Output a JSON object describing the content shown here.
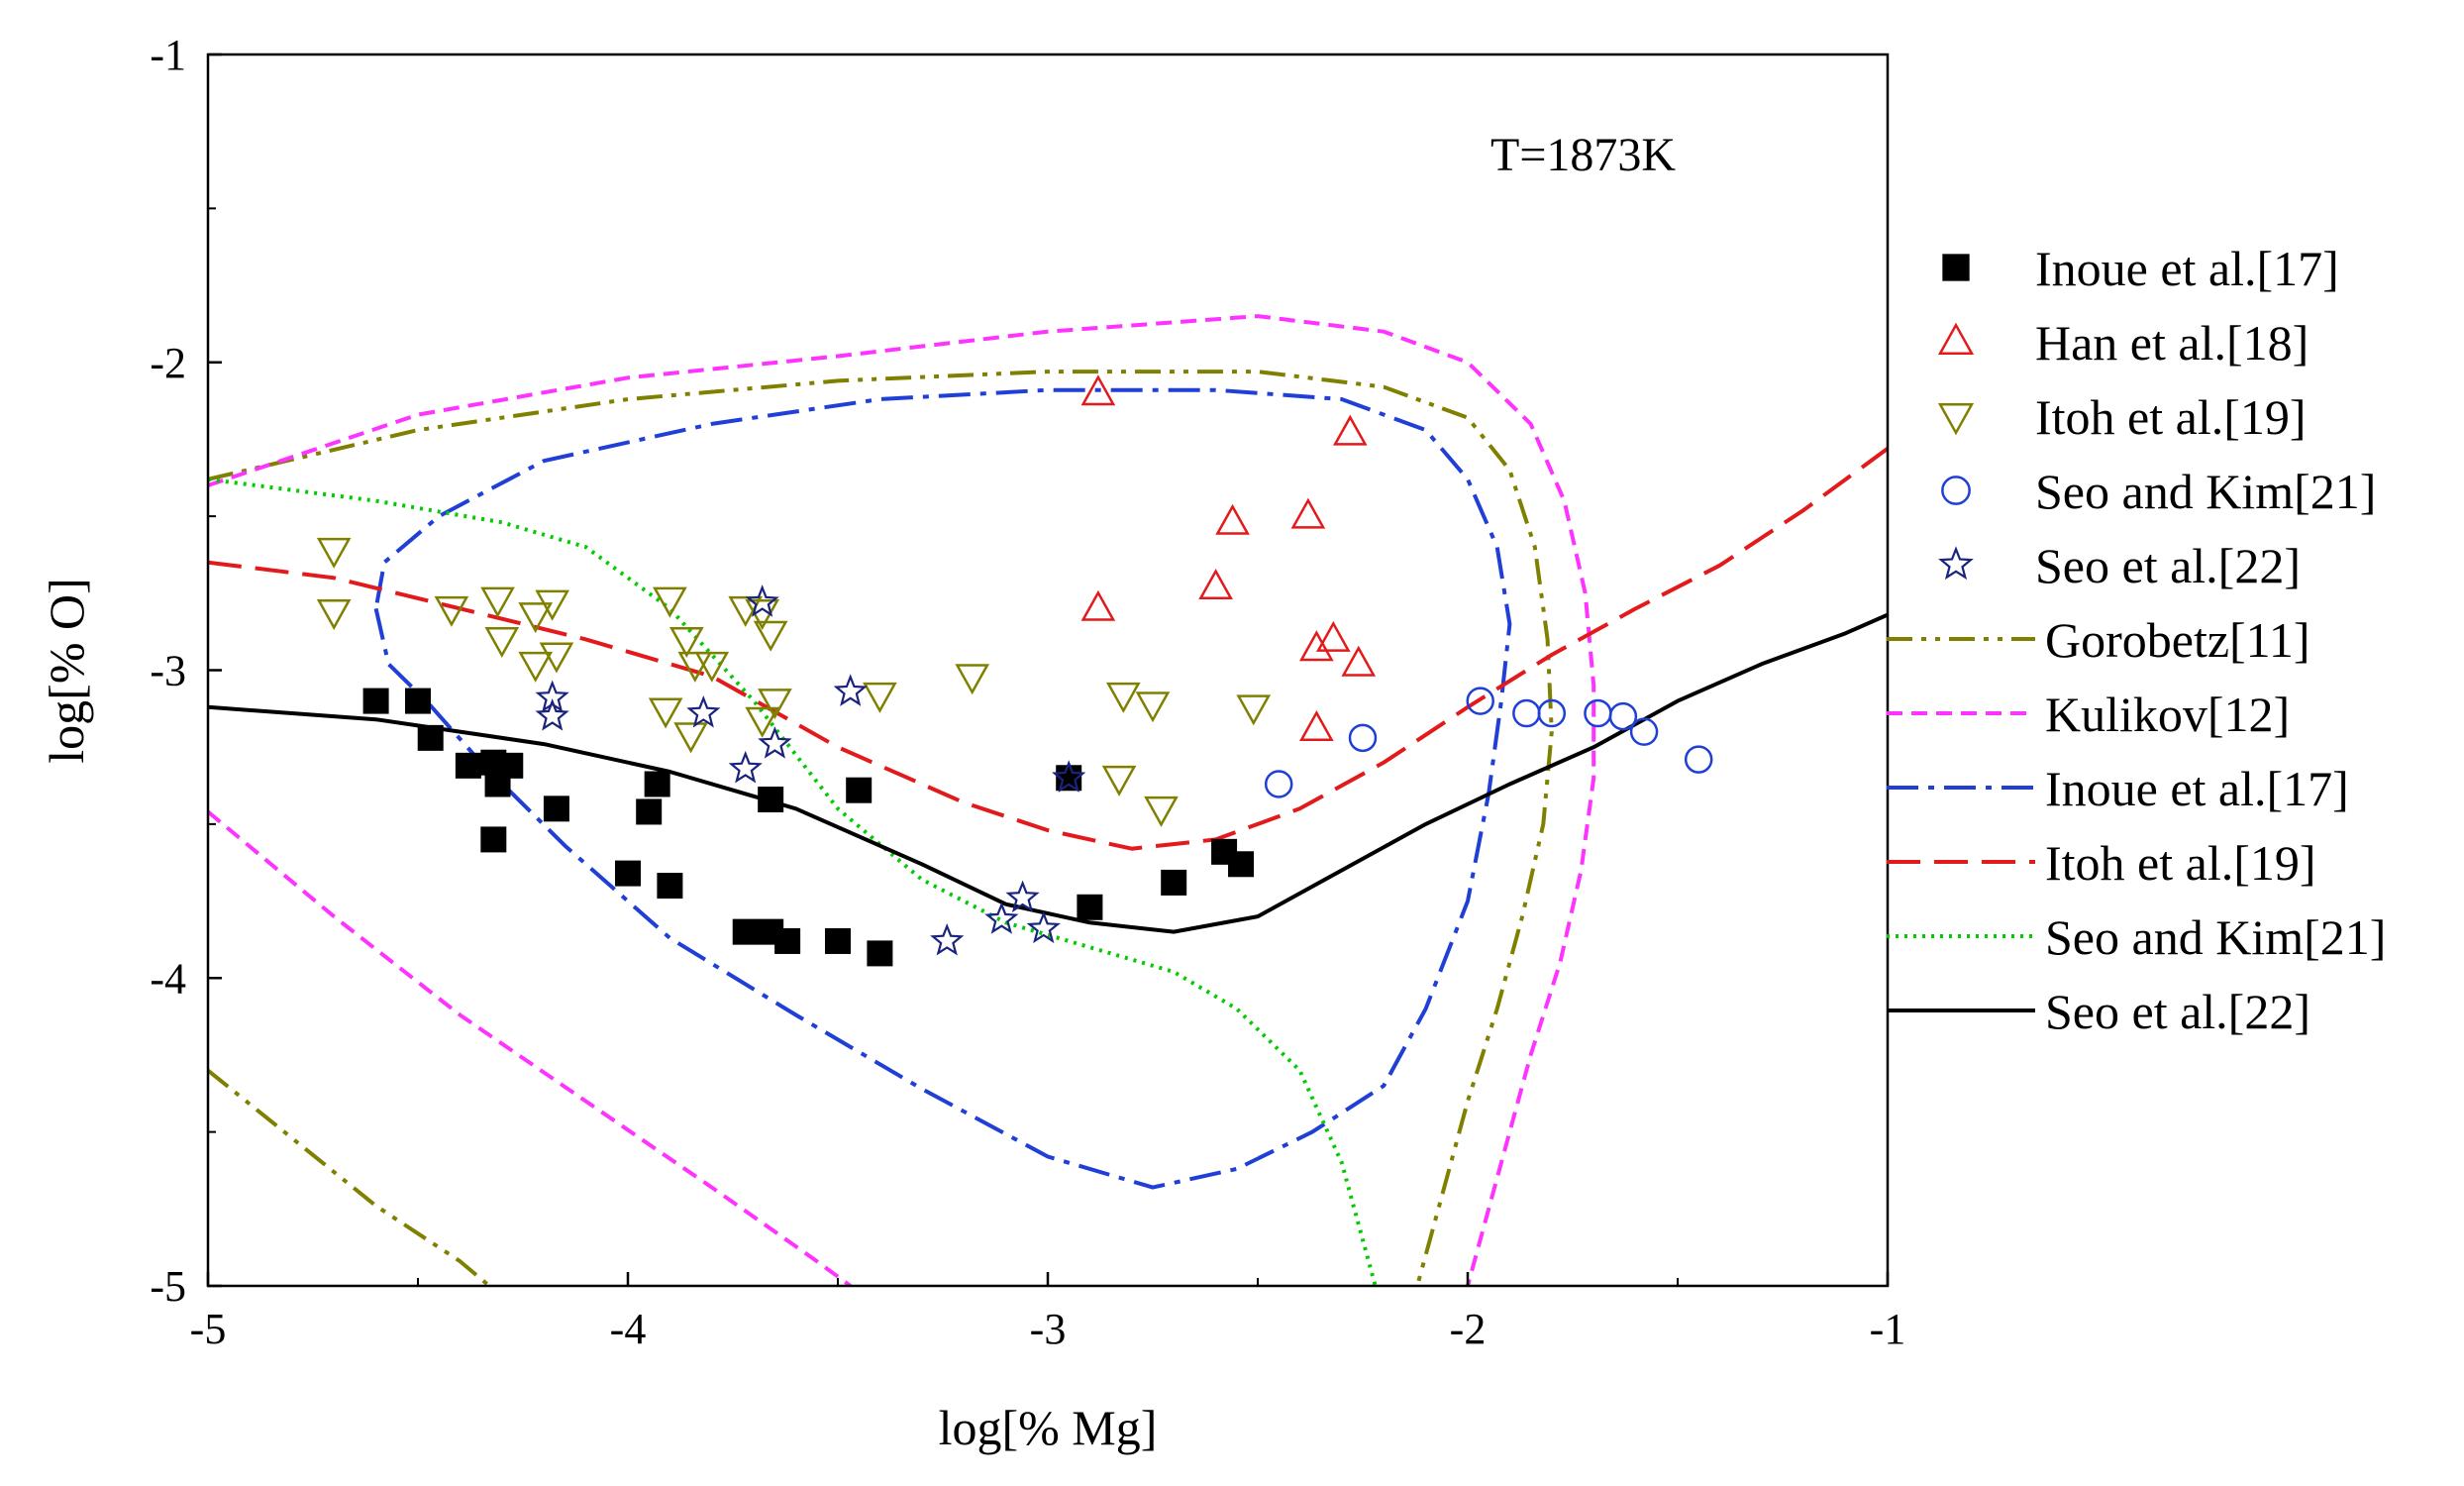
{
  "chart_data": {
    "type": "scatter",
    "title": "",
    "annotation": "T=1873K",
    "xlabel": "log[% Mg]",
    "ylabel": "log[% O]",
    "xlim": [
      -5,
      -1
    ],
    "ylim": [
      -5,
      -1
    ],
    "xticks": [
      "-5",
      "-4",
      "-3",
      "-2",
      "-1"
    ],
    "yticks": [
      "-5",
      "-4",
      "-3",
      "-2",
      "-1"
    ],
    "grid": false,
    "legend_position": "right",
    "scatter_series": [
      {
        "name": "Inoue et al.[17]",
        "marker": "filled-square",
        "color": "#000000",
        "points": [
          [
            -4.6,
            -3.1
          ],
          [
            -4.5,
            -3.1
          ],
          [
            -4.47,
            -3.22
          ],
          [
            -4.38,
            -3.31
          ],
          [
            -4.32,
            -3.3
          ],
          [
            -4.31,
            -3.37
          ],
          [
            -4.28,
            -3.31
          ],
          [
            -4.32,
            -3.55
          ],
          [
            -4.17,
            -3.45
          ],
          [
            -3.93,
            -3.37
          ],
          [
            -3.95,
            -3.46
          ],
          [
            -4.0,
            -3.66
          ],
          [
            -3.9,
            -3.7
          ],
          [
            -3.66,
            -3.42
          ],
          [
            -3.72,
            -3.85
          ],
          [
            -3.66,
            -3.85
          ],
          [
            -3.62,
            -3.88
          ],
          [
            -3.5,
            -3.88
          ],
          [
            -3.4,
            -3.92
          ],
          [
            -3.45,
            -3.39
          ],
          [
            -2.95,
            -3.35
          ],
          [
            -2.9,
            -3.77
          ],
          [
            -2.7,
            -3.69
          ],
          [
            -2.58,
            -3.59
          ],
          [
            -2.54,
            -3.63
          ]
        ]
      },
      {
        "name": "Han et al.[18]",
        "marker": "open-triangle-up",
        "color": "#e31a1c",
        "points": [
          [
            -2.88,
            -2.1
          ],
          [
            -2.28,
            -2.23
          ],
          [
            -2.56,
            -2.52
          ],
          [
            -2.38,
            -2.5
          ],
          [
            -2.88,
            -2.8
          ],
          [
            -2.6,
            -2.73
          ],
          [
            -2.36,
            -2.93
          ],
          [
            -2.32,
            -2.9
          ],
          [
            -2.26,
            -2.98
          ],
          [
            -2.36,
            -3.19
          ]
        ]
      },
      {
        "name": "Itoh et al.[19]",
        "marker": "open-triangle-down",
        "color": "#808000",
        "points": [
          [
            -4.7,
            -2.61
          ],
          [
            -4.7,
            -2.81
          ],
          [
            -4.42,
            -2.8
          ],
          [
            -4.31,
            -2.77
          ],
          [
            -4.3,
            -2.9
          ],
          [
            -4.22,
            -2.82
          ],
          [
            -4.18,
            -2.78
          ],
          [
            -4.17,
            -2.95
          ],
          [
            -4.22,
            -2.98
          ],
          [
            -3.9,
            -2.77
          ],
          [
            -3.86,
            -2.9
          ],
          [
            -3.84,
            -2.98
          ],
          [
            -3.8,
            -2.98
          ],
          [
            -3.72,
            -2.8
          ],
          [
            -3.68,
            -2.81
          ],
          [
            -3.66,
            -2.88
          ],
          [
            -3.68,
            -3.16
          ],
          [
            -3.65,
            -3.1
          ],
          [
            -3.91,
            -3.13
          ],
          [
            -3.85,
            -3.21
          ],
          [
            -3.4,
            -3.08
          ],
          [
            -3.18,
            -3.02
          ],
          [
            -2.82,
            -3.08
          ],
          [
            -2.75,
            -3.11
          ],
          [
            -2.51,
            -3.12
          ],
          [
            -2.83,
            -3.35
          ],
          [
            -2.73,
            -3.45
          ]
        ]
      },
      {
        "name": "Seo and Kim[21]",
        "marker": "open-circle",
        "color": "#1f3fd6",
        "points": [
          [
            -2.45,
            -3.37
          ],
          [
            -2.25,
            -3.22
          ],
          [
            -1.97,
            -3.1
          ],
          [
            -1.86,
            -3.14
          ],
          [
            -1.8,
            -3.14
          ],
          [
            -1.69,
            -3.14
          ],
          [
            -1.63,
            -3.15
          ],
          [
            -1.58,
            -3.2
          ],
          [
            -1.45,
            -3.29
          ]
        ]
      },
      {
        "name": "Seo et al.[22]",
        "marker": "open-star",
        "color": "#1a237e",
        "points": [
          [
            -3.68,
            -2.78
          ],
          [
            -4.18,
            -3.09
          ],
          [
            -4.18,
            -3.15
          ],
          [
            -3.82,
            -3.14
          ],
          [
            -3.47,
            -3.07
          ],
          [
            -3.65,
            -3.24
          ],
          [
            -3.72,
            -3.32
          ],
          [
            -2.95,
            -3.35
          ],
          [
            -3.06,
            -3.74
          ],
          [
            -3.11,
            -3.81
          ],
          [
            -3.01,
            -3.84
          ],
          [
            -3.24,
            -3.88
          ]
        ]
      }
    ],
    "line_series": [
      {
        "name": "Gorobetz[11]",
        "style": "dash-dot-dot",
        "color": "#808000",
        "segments": [
          [
            [
              -5.0,
              -2.38
            ],
            [
              -4.5,
              -2.22
            ],
            [
              -4.0,
              -2.12
            ],
            [
              -3.5,
              -2.06
            ],
            [
              -3.0,
              -2.03
            ],
            [
              -2.5,
              -2.03
            ],
            [
              -2.2,
              -2.08
            ],
            [
              -2.0,
              -2.18
            ],
            [
              -1.9,
              -2.35
            ],
            [
              -1.84,
              -2.6
            ],
            [
              -1.81,
              -2.9
            ],
            [
              -1.8,
              -3.2
            ],
            [
              -1.82,
              -3.5
            ],
            [
              -1.87,
              -3.8
            ],
            [
              -1.93,
              -4.1
            ],
            [
              -2.0,
              -4.4
            ],
            [
              -2.06,
              -4.7
            ],
            [
              -2.12,
              -5.0
            ]
          ],
          [
            [
              -5.0,
              -4.3
            ],
            [
              -4.8,
              -4.52
            ],
            [
              -4.6,
              -4.74
            ],
            [
              -4.4,
              -4.92
            ],
            [
              -4.33,
              -5.0
            ]
          ]
        ]
      },
      {
        "name": "Kulikov[12]",
        "style": "dashed",
        "color": "#ff33ff",
        "segments": [
          [
            [
              -5.0,
              -2.4
            ],
            [
              -4.5,
              -2.17
            ],
            [
              -4.0,
              -2.05
            ],
            [
              -3.5,
              -1.98
            ],
            [
              -3.0,
              -1.9
            ],
            [
              -2.5,
              -1.85
            ],
            [
              -2.2,
              -1.9
            ],
            [
              -2.0,
              -2.0
            ],
            [
              -1.85,
              -2.2
            ],
            [
              -1.77,
              -2.45
            ],
            [
              -1.72,
              -2.75
            ],
            [
              -1.7,
              -3.05
            ],
            [
              -1.7,
              -3.35
            ],
            [
              -1.73,
              -3.65
            ],
            [
              -1.78,
              -3.95
            ],
            [
              -1.85,
              -4.25
            ],
            [
              -1.92,
              -4.6
            ],
            [
              -2.0,
              -5.0
            ]
          ],
          [
            [
              -5.0,
              -3.46
            ],
            [
              -4.7,
              -3.8
            ],
            [
              -4.4,
              -4.12
            ],
            [
              -4.1,
              -4.4
            ],
            [
              -3.8,
              -4.68
            ],
            [
              -3.55,
              -4.92
            ],
            [
              -3.47,
              -5.0
            ]
          ]
        ]
      },
      {
        "name": "Inoue et al.[17]",
        "style": "dash-dot",
        "color": "#1f3fd6",
        "segments": [
          [
            [
              -4.6,
              -2.8
            ],
            [
              -4.57,
              -2.98
            ],
            [
              -4.48,
              -3.1
            ],
            [
              -4.35,
              -3.3
            ],
            [
              -4.15,
              -3.57
            ],
            [
              -3.9,
              -3.87
            ],
            [
              -3.6,
              -4.12
            ],
            [
              -3.3,
              -4.36
            ],
            [
              -3.0,
              -4.58
            ],
            [
              -2.75,
              -4.68
            ],
            [
              -2.55,
              -4.62
            ],
            [
              -2.37,
              -4.5
            ],
            [
              -2.2,
              -4.35
            ],
            [
              -2.1,
              -4.1
            ],
            [
              -2.0,
              -3.75
            ],
            [
              -1.95,
              -3.4
            ],
            [
              -1.92,
              -3.1
            ],
            [
              -1.9,
              -2.85
            ],
            [
              -1.93,
              -2.6
            ],
            [
              -2.0,
              -2.38
            ],
            [
              -2.1,
              -2.22
            ],
            [
              -2.3,
              -2.12
            ],
            [
              -2.6,
              -2.09
            ],
            [
              -3.0,
              -2.09
            ],
            [
              -3.4,
              -2.12
            ],
            [
              -3.8,
              -2.2
            ],
            [
              -4.2,
              -2.32
            ],
            [
              -4.45,
              -2.5
            ],
            [
              -4.58,
              -2.65
            ],
            [
              -4.6,
              -2.8
            ]
          ]
        ]
      },
      {
        "name": "Itoh et al.[19]",
        "style": "long-dash",
        "color": "#e31a1c",
        "segments": [
          [
            [
              -5.0,
              -2.65
            ],
            [
              -4.7,
              -2.7
            ],
            [
              -4.4,
              -2.8
            ],
            [
              -4.1,
              -2.9
            ],
            [
              -3.8,
              -3.02
            ],
            [
              -3.5,
              -3.25
            ],
            [
              -3.2,
              -3.43
            ],
            [
              -3.0,
              -3.52
            ],
            [
              -2.8,
              -3.58
            ],
            [
              -2.6,
              -3.55
            ],
            [
              -2.4,
              -3.45
            ],
            [
              -2.2,
              -3.3
            ],
            [
              -2.0,
              -3.12
            ],
            [
              -1.8,
              -2.95
            ],
            [
              -1.6,
              -2.8
            ],
            [
              -1.4,
              -2.66
            ],
            [
              -1.2,
              -2.48
            ],
            [
              -1.0,
              -2.28
            ]
          ]
        ]
      },
      {
        "name": "Seo and Kim[21]",
        "style": "dotted",
        "color": "#00cc00",
        "segments": [
          [
            [
              -5.0,
              -2.38
            ],
            [
              -4.6,
              -2.45
            ],
            [
              -4.3,
              -2.52
            ],
            [
              -4.1,
              -2.6
            ],
            [
              -3.9,
              -2.8
            ],
            [
              -3.7,
              -3.1
            ],
            [
              -3.5,
              -3.45
            ],
            [
              -3.3,
              -3.68
            ],
            [
              -3.1,
              -3.82
            ],
            [
              -2.9,
              -3.9
            ],
            [
              -2.7,
              -3.98
            ],
            [
              -2.55,
              -4.1
            ],
            [
              -2.4,
              -4.3
            ],
            [
              -2.3,
              -4.6
            ],
            [
              -2.22,
              -5.0
            ]
          ]
        ]
      },
      {
        "name": "Seo et al.[22]",
        "style": "solid",
        "color": "#000000",
        "segments": [
          [
            [
              -5.0,
              -3.12
            ],
            [
              -4.6,
              -3.16
            ],
            [
              -4.2,
              -3.24
            ],
            [
              -3.9,
              -3.33
            ],
            [
              -3.6,
              -3.45
            ],
            [
              -3.3,
              -3.63
            ],
            [
              -3.1,
              -3.76
            ],
            [
              -2.9,
              -3.82
            ],
            [
              -2.7,
              -3.85
            ],
            [
              -2.5,
              -3.8
            ],
            [
              -2.3,
              -3.65
            ],
            [
              -2.1,
              -3.5
            ],
            [
              -1.9,
              -3.37
            ],
            [
              -1.7,
              -3.25
            ],
            [
              -1.5,
              -3.1
            ],
            [
              -1.3,
              -2.98
            ],
            [
              -1.1,
              -2.88
            ],
            [
              -1.0,
              -2.82
            ]
          ]
        ]
      }
    ]
  }
}
